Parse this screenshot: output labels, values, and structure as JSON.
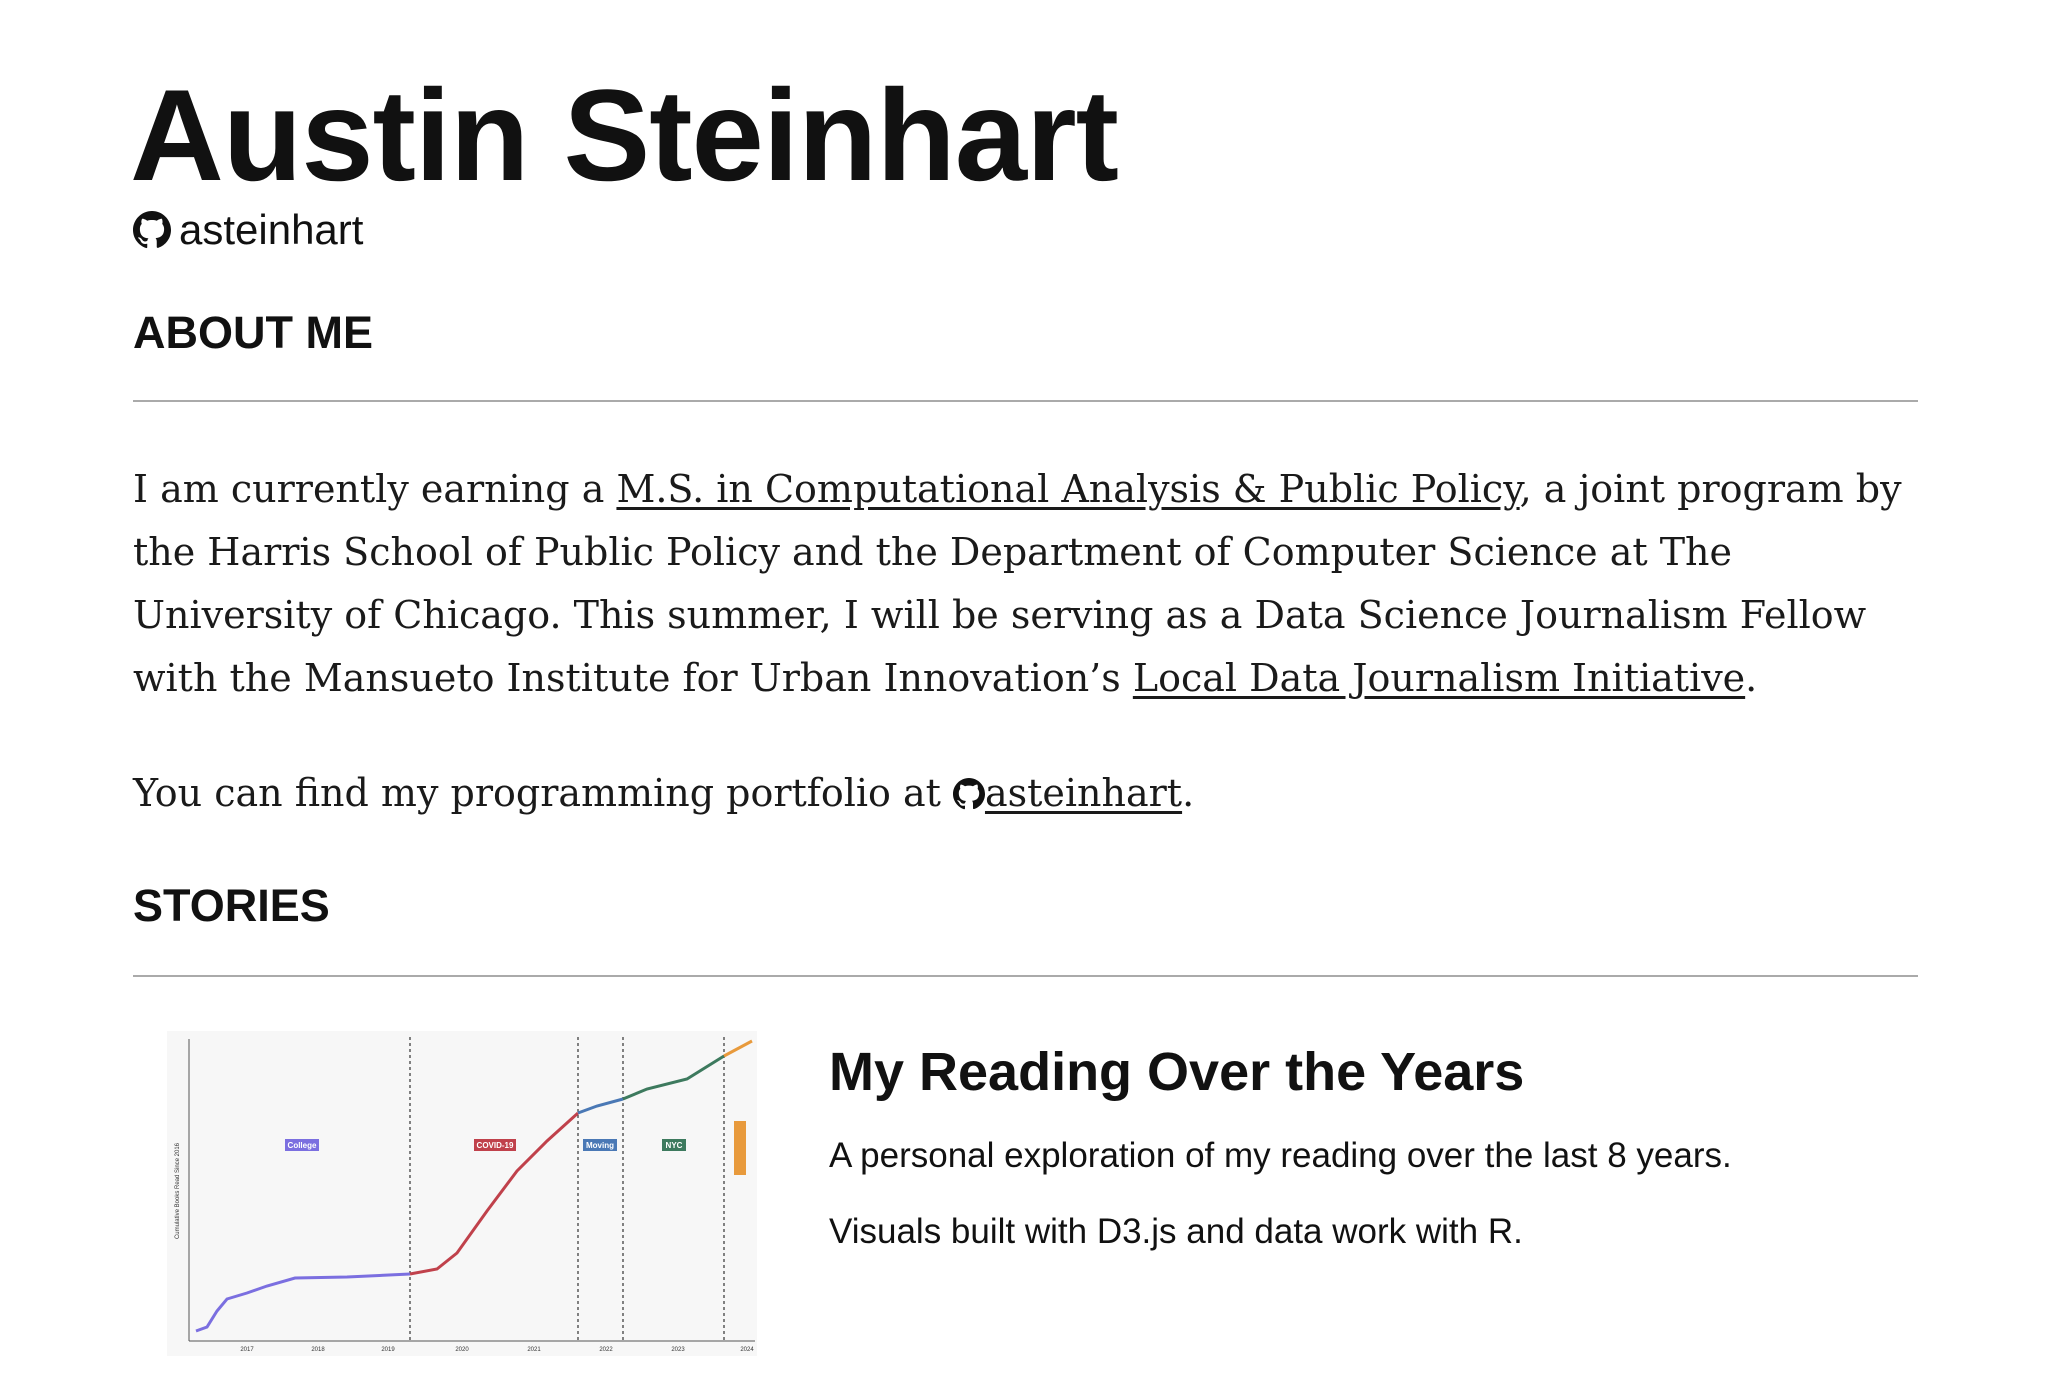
{
  "header": {
    "name": "Austin Steinhart",
    "github": "asteinhart"
  },
  "about": {
    "heading": "ABOUT ME",
    "paragraph": {
      "before": "I am currently earning a ",
      "link1": "M.S. in Computational Analysis & Public Policy",
      "middle": ", a joint program by the Harris School of Public Policy and the Department of Computer Science at The University of Chicago. This summer, I will be serving as a Data Science Journalism Fellow with the Mansueto Institute for Urban Innovation’s ",
      "link2": "Local Data Journalism Initiative",
      "end": "."
    },
    "portfolio": {
      "before": "You can find my programming portfolio at ",
      "link": "asteinhart",
      "end": "."
    }
  },
  "stories": {
    "heading": "STORIES",
    "items": [
      {
        "title": "My Reading Over the Years",
        "description": "A personal exploration of my reading over the last 8 years.",
        "tech": "Visuals built with D3.js and data work with R.",
        "thumbnail": {
          "y_label": "Cumulative Books Read Since 2016",
          "periods": [
            "College",
            "COVID-19",
            "Moving",
            "NYC"
          ],
          "years": [
            "2017",
            "2018",
            "2019",
            "2020",
            "2021",
            "2022",
            "2023",
            "2024"
          ]
        }
      }
    ]
  }
}
